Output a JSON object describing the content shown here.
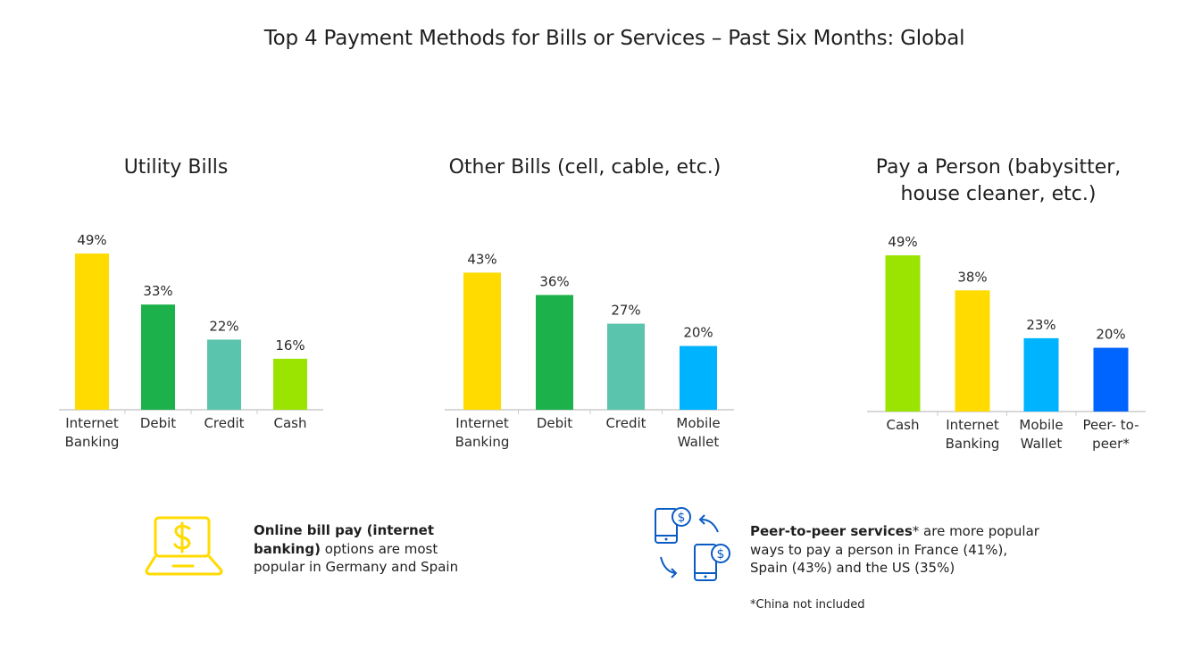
{
  "title": "Top 4 Payment Methods for Bills or Services – Past Six Months: Global",
  "colors": {
    "yellow": "#FFDB00",
    "green": "#1DB14B",
    "teal": "#5BC4AC",
    "lime": "#9BE300",
    "sky": "#00B3FF",
    "blue": "#0065FF",
    "axis": "#CCCCCC",
    "icon_yellow": "#FFDB00",
    "icon_blue": "#0A5BC4"
  },
  "chart_data": [
    {
      "type": "bar",
      "title": "Utility Bills",
      "categories": [
        "Internet\nBanking",
        "Debit",
        "Credit",
        "Cash"
      ],
      "values": [
        49,
        33,
        22,
        16
      ],
      "value_labels": [
        "49%",
        "33%",
        "22%",
        "16%"
      ],
      "colors": [
        "yellow",
        "green",
        "teal",
        "lime"
      ],
      "ylim": [
        0,
        49
      ],
      "unit": "%"
    },
    {
      "type": "bar",
      "title": "Other Bills (cell, cable, etc.)",
      "categories": [
        "Internet\nBanking",
        "Debit",
        "Credit",
        "Mobile\nWallet"
      ],
      "values": [
        43,
        36,
        27,
        20
      ],
      "value_labels": [
        "43%",
        "36%",
        "27%",
        "20%"
      ],
      "colors": [
        "yellow",
        "green",
        "teal",
        "sky"
      ],
      "ylim": [
        0,
        49
      ],
      "unit": "%"
    },
    {
      "type": "bar",
      "title": "Pay a Person (babysitter,\nhouse cleaner, etc.)",
      "categories": [
        "Cash",
        "Internet\nBanking",
        "Mobile\nWallet",
        "Peer- to-\npeer*"
      ],
      "values": [
        49,
        38,
        23,
        20
      ],
      "value_labels": [
        "49%",
        "38%",
        "23%",
        "20%"
      ],
      "colors": [
        "lime",
        "yellow",
        "sky",
        "blue"
      ],
      "ylim": [
        0,
        49
      ],
      "unit": "%"
    }
  ],
  "notes": {
    "online": {
      "bold": "Online bill pay (internet banking)",
      "rest": " options are most popular in Germany and Spain",
      "icon": "laptop-dollar-icon"
    },
    "p2p": {
      "bold": "Peer-to-peer services",
      "rest": "* are more popular ways to pay a person in France (41%), Spain (43%) and the US (35%)",
      "icon": "phone-transfer-icon"
    },
    "footnote": "*China not included"
  }
}
